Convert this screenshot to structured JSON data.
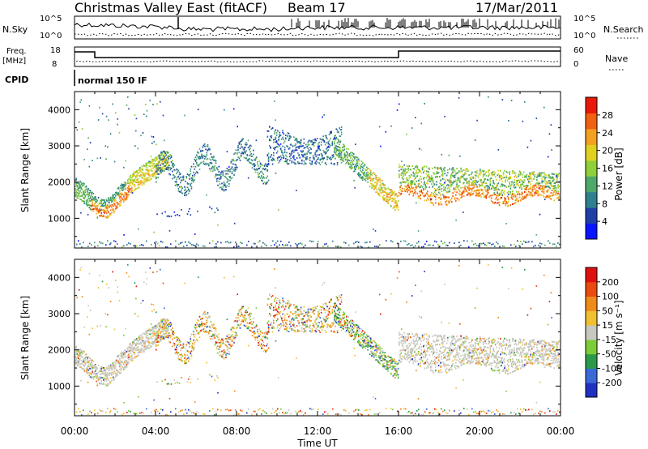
{
  "header": {
    "title": "Christmas Valley East (fitACF)",
    "beam": "Beam 17",
    "date": "17/Mar/2011"
  },
  "status_panels": {
    "nsky_label": "N.Sky",
    "nsky_ticks": [
      "10^5",
      "10^0"
    ],
    "nsearch_label": "N.Search",
    "nsearch_ticks": [
      "10^5",
      "10^0"
    ],
    "freq_label": "Freq.",
    "freq_unit": "[MHz]",
    "freq_ticks": [
      "18",
      "8"
    ],
    "nave_label": "Nave",
    "nave_ticks": [
      "60",
      "0"
    ],
    "cpid_label": "CPID",
    "cpid_text": "normal 150 IF"
  },
  "x_axis": {
    "label": "Time UT",
    "tick_labels": [
      "00:00",
      "04:00",
      "08:00",
      "12:00",
      "16:00",
      "20:00",
      "00:00"
    ],
    "tick_hours": [
      0,
      4,
      8,
      12,
      16,
      20,
      24
    ]
  },
  "chart_data": [
    {
      "type": "heatmap",
      "name": "power",
      "ylabel": "Slant Range [km]",
      "xlabel": "",
      "ylim": [
        180,
        4500
      ],
      "xlim_hours": [
        0,
        24
      ],
      "y_ticks": [
        1000,
        2000,
        3000,
        4000
      ],
      "colorbar": {
        "label": "Power [dB]",
        "tick_labels": [
          "4",
          "8",
          "12",
          "16",
          "20",
          "24",
          "28"
        ],
        "colors": [
          "#0a14ff",
          "#1f3fa8",
          "#2f7f8f",
          "#4ea86a",
          "#8fcf3a",
          "#e0d020",
          "#f4a020",
          "#f06010",
          "#e81808"
        ]
      }
    },
    {
      "type": "heatmap",
      "name": "velocity",
      "ylabel": "Slant Range [km]",
      "xlabel": "Time UT",
      "ylim": [
        180,
        4500
      ],
      "xlim_hours": [
        0,
        24
      ],
      "y_ticks": [
        1000,
        2000,
        3000,
        4000
      ],
      "colorbar": {
        "label": "Velocity [m s⁻¹]",
        "tick_labels": [
          "200",
          "100",
          "50",
          "15",
          "-15",
          "-50",
          "-100",
          "-200"
        ],
        "colors": [
          "#2030c0",
          "#3a6ad8",
          "#2a9a4a",
          "#7ccc38",
          "#c8c8c0",
          "#f0c030",
          "#f08a18",
          "#e84a10",
          "#e01010"
        ]
      }
    }
  ]
}
